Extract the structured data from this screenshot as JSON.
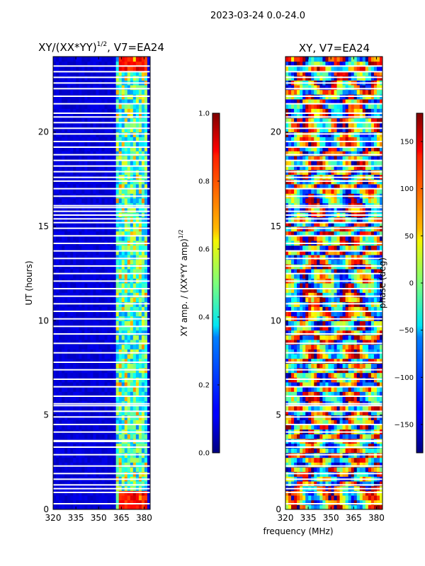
{
  "figure_title": "2023-03-24 0.0-24.0",
  "shared_xlabel": "frequency (MHz)",
  "chart_data": [
    {
      "type": "heatmap",
      "title_text": "XY/(XX*YY)",
      "title_superscript": "1/2",
      "title_suffix": ", V7=EA24",
      "xlabel": "",
      "ylabel": "UT (hours)",
      "x_ticks": [
        "320",
        "335",
        "350",
        "365",
        "380"
      ],
      "x_tick_values": [
        320,
        335,
        350,
        365,
        380
      ],
      "xlim": [
        320,
        384
      ],
      "y_ticks": [
        "0",
        "5",
        "10",
        "15",
        "20"
      ],
      "y_tick_values": [
        0,
        5,
        10,
        15,
        20
      ],
      "ylim": [
        0,
        24
      ],
      "colormap": "jet",
      "colorbar": {
        "label_text": "XY amp. / (XX*YY amp)",
        "label_superscript": "1/2",
        "ticks": [
          "0.0",
          "0.2",
          "0.4",
          "0.6",
          "0.8",
          "1.0"
        ],
        "tick_values": [
          0.0,
          0.2,
          0.4,
          0.6,
          0.8,
          1.0
        ],
        "range": [
          0,
          1
        ]
      },
      "high_value_band_MHz": [
        362,
        382
      ]
    },
    {
      "type": "heatmap",
      "title_text": "XY, V7=EA24",
      "xlabel": "frequency (MHz)",
      "ylabel": "",
      "x_ticks": [
        "320",
        "335",
        "350",
        "365",
        "380"
      ],
      "x_tick_values": [
        320,
        335,
        350,
        365,
        380
      ],
      "xlim": [
        320,
        384
      ],
      "y_ticks": [
        "0",
        "5",
        "10",
        "15",
        "20"
      ],
      "y_tick_values": [
        0,
        5,
        10,
        15,
        20
      ],
      "ylim": [
        0,
        24
      ],
      "colormap": "jet",
      "colorbar": {
        "label_text": "phase (deg)",
        "ticks": [
          "−150",
          "−100",
          "−50",
          "0",
          "50",
          "100",
          "150"
        ],
        "tick_values": [
          -150,
          -100,
          -50,
          0,
          50,
          100,
          150
        ],
        "range": [
          -180,
          180
        ]
      }
    }
  ],
  "flagged_gaps_UT_hours": [
    0.3,
    0.9,
    1.1,
    1.3,
    1.6,
    1.9,
    2.3,
    2.9,
    3.3,
    3.6,
    3.65,
    4.1,
    4.5,
    4.9,
    5.2,
    5.5,
    5.6,
    6.0,
    6.5,
    6.9,
    7.4,
    7.8,
    8.3,
    8.8,
    9.3,
    9.7,
    10.1,
    10.5,
    10.9,
    11.3,
    11.7,
    12.1,
    12.5,
    12.9,
    13.3,
    13.7,
    14.1,
    14.5,
    14.9,
    15.2,
    15.4,
    15.6,
    15.8,
    16.0,
    16.1,
    16.6,
    17.0,
    17.4,
    17.6,
    17.9,
    18.2,
    18.5,
    18.8,
    19.2,
    19.5,
    19.9,
    20.2,
    20.5,
    20.8,
    21.0,
    21.5,
    21.9,
    22.3,
    22.6,
    22.9,
    23.2,
    23.5
  ]
}
